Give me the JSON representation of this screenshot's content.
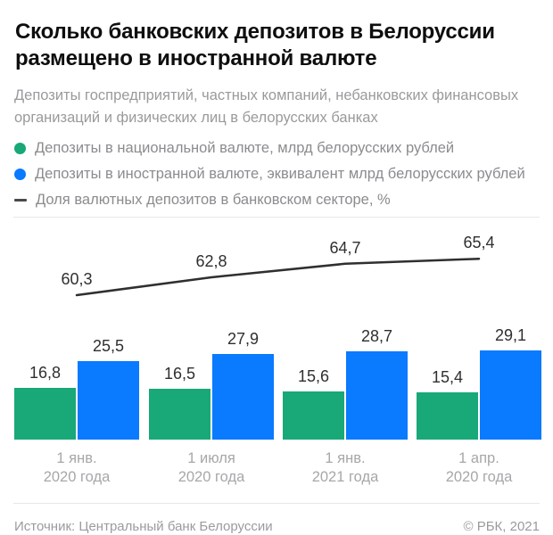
{
  "header": {
    "title_line1": "Сколько банковских депозитов в Белоруссии",
    "title_line2": "размещено в иностранной валюте",
    "subtitle_line1": "Депозиты госпредприятий, частных компаний, небанковских финансовых",
    "subtitle_line2": "организаций и физических лиц в белорусских банках"
  },
  "legend": {
    "items": [
      {
        "marker": "dot",
        "color": "#19a878",
        "label": "Депозиты в национальной валюте, млрд белорусских рублей"
      },
      {
        "marker": "dot",
        "color": "#0a7aff",
        "label": "Депозиты в иностранной валюте, эквивалент млрд белорусских рублей"
      },
      {
        "marker": "dash",
        "color": "#4a4a4a",
        "label": "Доля валютных депозитов в банковском секторе, %"
      }
    ]
  },
  "chart_data": {
    "type": "bar",
    "title": "Сколько банковских депозитов в Белоруссии размещено в иностранной валюте",
    "categories": [
      {
        "line1": "1 янв.",
        "line2": "2020 года"
      },
      {
        "line1": "1 июля",
        "line2": "2020 года"
      },
      {
        "line1": "1 янв.",
        "line2": "2021 года"
      },
      {
        "line1": "1 апр.",
        "line2": "2020 года"
      }
    ],
    "series": [
      {
        "name": "Депозиты в национальной валюте, млрд белорусских рублей",
        "color": "#19a878",
        "values": [
          16.8,
          16.5,
          15.6,
          15.4
        ]
      },
      {
        "name": "Депозиты в иностранной валюте, эквивалент млрд белорусских рублей",
        "color": "#0a7aff",
        "values": [
          25.5,
          27.9,
          28.7,
          29.1
        ]
      }
    ],
    "line_series": {
      "name": "Доля валютных депозитов в банковском секторе, %",
      "color": "#2f2f2f",
      "values": [
        60.3,
        62.8,
        64.7,
        65.4
      ]
    },
    "decimal_separator": ",",
    "grid": false,
    "legend_position": "top"
  },
  "footer": {
    "source": "Источник: Центральный банк Белоруссии",
    "copyright": "© РБК, 2021"
  }
}
